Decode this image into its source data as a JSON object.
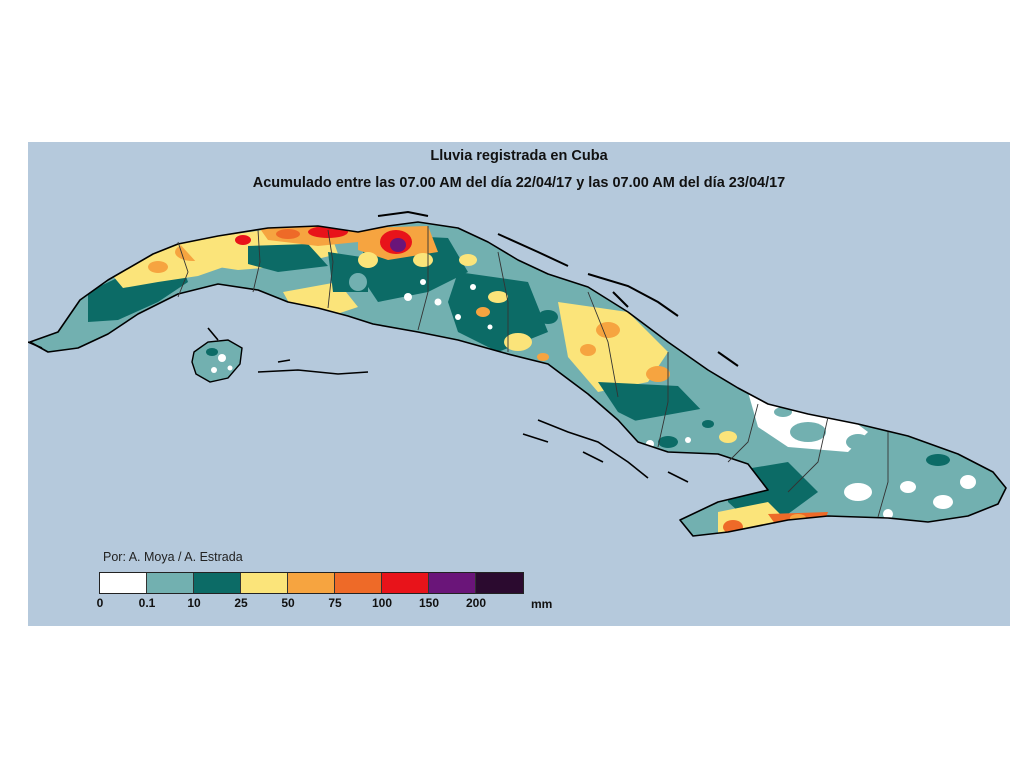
{
  "map": {
    "title": "Lluvia registrada en Cuba",
    "subtitle": "Acumulado entre las 07.00 AM del día 22/04/17 y las 07.00 AM del día 23/04/17",
    "credit": "Por: A. Moya / A. Estrada",
    "region": "Cuba",
    "variable": "rainfall accumulation",
    "colors": {
      "background": "#b5c9dc",
      "outline": "#000000"
    }
  },
  "legend": {
    "unit": "mm",
    "ticks": [
      "0",
      "0.1",
      "10",
      "25",
      "50",
      "75",
      "100",
      "150",
      "200"
    ],
    "bins": [
      {
        "from": 0,
        "to": 0.1,
        "color": "#ffffff"
      },
      {
        "from": 0.1,
        "to": 10,
        "color": "#72b0b0"
      },
      {
        "from": 10,
        "to": 25,
        "color": "#0c6b66"
      },
      {
        "from": 25,
        "to": 50,
        "color": "#fbe47a"
      },
      {
        "from": 50,
        "to": 75,
        "color": "#f6a440"
      },
      {
        "from": 75,
        "to": 100,
        "color": "#ee6a28"
      },
      {
        "from": 100,
        "to": 150,
        "color": "#e8131a"
      },
      {
        "from": 150,
        "to": 200,
        "color": "#6a1579"
      },
      {
        "from": 200,
        "to": null,
        "color": "#2b0a2f"
      }
    ]
  }
}
